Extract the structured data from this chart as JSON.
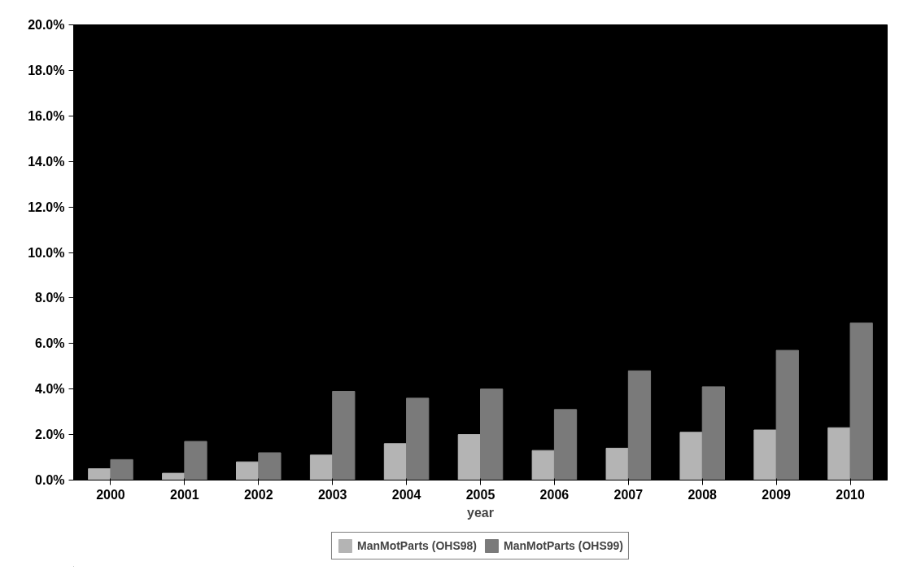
{
  "chart_data": {
    "type": "bar",
    "xlabel": "year",
    "categories": [
      "2000",
      "2001",
      "2002",
      "2003",
      "2004",
      "2005",
      "2006",
      "2007",
      "2008",
      "2009",
      "2010"
    ],
    "series": [
      {
        "name": "ManMotParts (OHS98)",
        "color": "#b4b4b4",
        "values": [
          0.5,
          0.3,
          0.8,
          1.1,
          1.6,
          2.0,
          1.3,
          1.4,
          2.1,
          2.2,
          2.3
        ]
      },
      {
        "name": "ManMotParts (OHS99)",
        "color": "#7a7a7a",
        "values": [
          0.9,
          1.7,
          1.2,
          3.9,
          3.6,
          4.0,
          3.1,
          4.8,
          4.1,
          5.7,
          6.9
        ]
      }
    ],
    "ylim": [
      0,
      20
    ],
    "yticks": [
      {
        "value": 0,
        "label": "0.0%"
      },
      {
        "value": 2,
        "label": "2.0%"
      },
      {
        "value": 4,
        "label": "4.0%"
      },
      {
        "value": 6,
        "label": "6.0%"
      },
      {
        "value": 8,
        "label": "8.0%"
      },
      {
        "value": 10,
        "label": "10.0%"
      },
      {
        "value": 12,
        "label": "12.0%"
      },
      {
        "value": 14,
        "label": "14.0%"
      },
      {
        "value": 16,
        "label": "16.0%"
      },
      {
        "value": 18,
        "label": "18.0%"
      },
      {
        "value": 20,
        "label": "20.0%"
      }
    ],
    "grid": false,
    "legend": "bottom"
  }
}
